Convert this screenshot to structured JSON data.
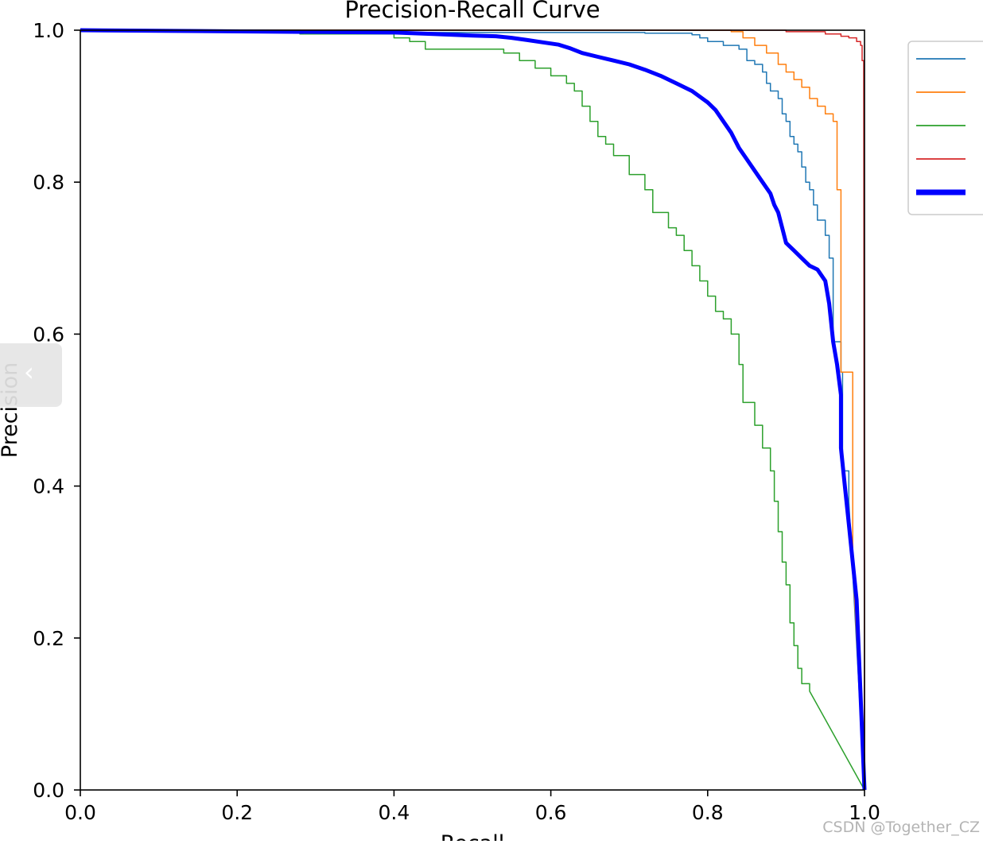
{
  "chart_data": {
    "type": "line",
    "title": "Precision-Recall Curve",
    "xlabel": "Recall",
    "ylabel": "Precision",
    "xlim": [
      0,
      1
    ],
    "ylim": [
      0,
      1
    ],
    "xticks": [
      "0.0",
      "0.2",
      "0.4",
      "0.6",
      "0.8",
      "1.0"
    ],
    "yticks": [
      "0.0",
      "0.2",
      "0.4",
      "0.6",
      "0.8",
      "1.0"
    ],
    "grid": false,
    "legend_position": "upper right (clipped)",
    "series": [
      {
        "color": "#1f77b4",
        "width": 1.5,
        "step": true,
        "points": [
          [
            0,
            1.0
          ],
          [
            0.28,
            0.997
          ],
          [
            0.62,
            0.997
          ],
          [
            0.72,
            0.996
          ],
          [
            0.78,
            0.994
          ],
          [
            0.79,
            0.99
          ],
          [
            0.8,
            0.985
          ],
          [
            0.82,
            0.98
          ],
          [
            0.84,
            0.975
          ],
          [
            0.85,
            0.96
          ],
          [
            0.86,
            0.955
          ],
          [
            0.87,
            0.945
          ],
          [
            0.875,
            0.93
          ],
          [
            0.88,
            0.92
          ],
          [
            0.89,
            0.91
          ],
          [
            0.895,
            0.89
          ],
          [
            0.9,
            0.88
          ],
          [
            0.905,
            0.86
          ],
          [
            0.91,
            0.85
          ],
          [
            0.915,
            0.84
          ],
          [
            0.92,
            0.82
          ],
          [
            0.925,
            0.8
          ],
          [
            0.93,
            0.79
          ],
          [
            0.935,
            0.77
          ],
          [
            0.94,
            0.75
          ],
          [
            0.95,
            0.73
          ],
          [
            0.955,
            0.7
          ],
          [
            0.96,
            0.67
          ],
          [
            0.96,
            0.59
          ],
          [
            0.97,
            0.55
          ],
          [
            0.972,
            0.42
          ],
          [
            0.98,
            0.38
          ],
          [
            1.0,
            0.0
          ]
        ]
      },
      {
        "color": "#ff7f0e",
        "width": 1.5,
        "step": true,
        "points": [
          [
            0,
            1.0
          ],
          [
            0.73,
            1.0
          ],
          [
            0.83,
            0.998
          ],
          [
            0.845,
            0.99
          ],
          [
            0.86,
            0.98
          ],
          [
            0.875,
            0.97
          ],
          [
            0.89,
            0.955
          ],
          [
            0.9,
            0.945
          ],
          [
            0.91,
            0.935
          ],
          [
            0.92,
            0.925
          ],
          [
            0.93,
            0.91
          ],
          [
            0.94,
            0.9
          ],
          [
            0.95,
            0.89
          ],
          [
            0.96,
            0.88
          ],
          [
            0.965,
            0.84
          ],
          [
            0.965,
            0.79
          ],
          [
            0.97,
            0.55
          ],
          [
            0.98,
            0.55
          ],
          [
            0.985,
            0.3
          ],
          [
            1.0,
            0.0
          ]
        ]
      },
      {
        "color": "#2ca02c",
        "width": 1.5,
        "step": true,
        "points": [
          [
            0,
            1.0
          ],
          [
            0.28,
            0.995
          ],
          [
            0.4,
            0.99
          ],
          [
            0.42,
            0.985
          ],
          [
            0.44,
            0.975
          ],
          [
            0.52,
            0.975
          ],
          [
            0.54,
            0.97
          ],
          [
            0.56,
            0.96
          ],
          [
            0.58,
            0.95
          ],
          [
            0.6,
            0.94
          ],
          [
            0.62,
            0.93
          ],
          [
            0.63,
            0.92
          ],
          [
            0.64,
            0.9
          ],
          [
            0.65,
            0.88
          ],
          [
            0.66,
            0.86
          ],
          [
            0.67,
            0.85
          ],
          [
            0.68,
            0.835
          ],
          [
            0.7,
            0.81
          ],
          [
            0.72,
            0.79
          ],
          [
            0.73,
            0.76
          ],
          [
            0.75,
            0.74
          ],
          [
            0.76,
            0.73
          ],
          [
            0.77,
            0.71
          ],
          [
            0.78,
            0.69
          ],
          [
            0.79,
            0.67
          ],
          [
            0.8,
            0.65
          ],
          [
            0.81,
            0.63
          ],
          [
            0.82,
            0.62
          ],
          [
            0.83,
            0.6
          ],
          [
            0.84,
            0.56
          ],
          [
            0.845,
            0.51
          ],
          [
            0.86,
            0.48
          ],
          [
            0.87,
            0.45
          ],
          [
            0.88,
            0.42
          ],
          [
            0.885,
            0.38
          ],
          [
            0.89,
            0.34
          ],
          [
            0.895,
            0.3
          ],
          [
            0.9,
            0.27
          ],
          [
            0.905,
            0.22
          ],
          [
            0.91,
            0.19
          ],
          [
            0.915,
            0.16
          ],
          [
            0.92,
            0.14
          ],
          [
            0.93,
            0.13
          ],
          [
            1.0,
            0.0
          ]
        ]
      },
      {
        "color": "#d62728",
        "width": 1.5,
        "step": true,
        "points": [
          [
            0,
            1.0
          ],
          [
            0.85,
            1.0
          ],
          [
            0.9,
            0.998
          ],
          [
            0.95,
            0.995
          ],
          [
            0.97,
            0.992
          ],
          [
            0.98,
            0.99
          ],
          [
            0.99,
            0.985
          ],
          [
            0.995,
            0.98
          ],
          [
            0.997,
            0.96
          ],
          [
            0.999,
            0.94
          ],
          [
            1.0,
            0.0
          ]
        ]
      },
      {
        "color": "#0000ff",
        "width": 5,
        "step": false,
        "points": [
          [
            0,
            1.0
          ],
          [
            0.4,
            0.997
          ],
          [
            0.45,
            0.995
          ],
          [
            0.5,
            0.993
          ],
          [
            0.53,
            0.992
          ],
          [
            0.55,
            0.99
          ],
          [
            0.57,
            0.987
          ],
          [
            0.59,
            0.984
          ],
          [
            0.61,
            0.981
          ],
          [
            0.625,
            0.976
          ],
          [
            0.64,
            0.97
          ],
          [
            0.66,
            0.965
          ],
          [
            0.68,
            0.96
          ],
          [
            0.7,
            0.955
          ],
          [
            0.72,
            0.948
          ],
          [
            0.74,
            0.94
          ],
          [
            0.76,
            0.93
          ],
          [
            0.78,
            0.92
          ],
          [
            0.8,
            0.905
          ],
          [
            0.81,
            0.895
          ],
          [
            0.82,
            0.88
          ],
          [
            0.83,
            0.865
          ],
          [
            0.84,
            0.845
          ],
          [
            0.85,
            0.83
          ],
          [
            0.86,
            0.815
          ],
          [
            0.87,
            0.8
          ],
          [
            0.88,
            0.785
          ],
          [
            0.885,
            0.77
          ],
          [
            0.89,
            0.76
          ],
          [
            0.895,
            0.74
          ],
          [
            0.9,
            0.72
          ],
          [
            0.91,
            0.71
          ],
          [
            0.92,
            0.7
          ],
          [
            0.93,
            0.69
          ],
          [
            0.94,
            0.685
          ],
          [
            0.95,
            0.67
          ],
          [
            0.955,
            0.64
          ],
          [
            0.96,
            0.59
          ],
          [
            0.965,
            0.56
          ],
          [
            0.97,
            0.52
          ],
          [
            0.97,
            0.45
          ],
          [
            0.975,
            0.4
          ],
          [
            0.98,
            0.35
          ],
          [
            0.985,
            0.3
          ],
          [
            0.99,
            0.25
          ],
          [
            1.0,
            0.0
          ]
        ]
      }
    ]
  }
}
